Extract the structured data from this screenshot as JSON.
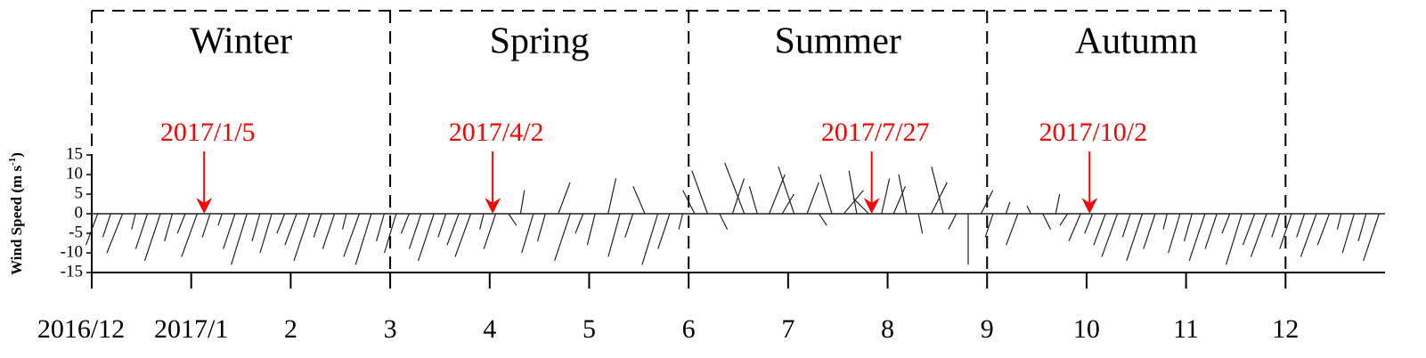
{
  "chart_data": {
    "type": "stick",
    "y_label": [
      "Wind Speed (m s",
      "-1",
      ")"
    ],
    "xlim": [
      0,
      13
    ],
    "ylim": [
      -15,
      15
    ],
    "yticks": [
      15,
      10,
      5,
      0,
      -5,
      -10,
      -15
    ],
    "xticks": [
      {
        "value": 0,
        "label": "2016/12"
      },
      {
        "value": 1,
        "label": "2017/1"
      },
      2,
      3,
      4,
      5,
      6,
      7,
      8,
      9,
      10,
      11,
      12
    ],
    "seasons": [
      {
        "label": "Winter",
        "start": 0,
        "end": 3
      },
      {
        "label": "Spring",
        "start": 3,
        "end": 6
      },
      {
        "label": "Summer",
        "start": 6,
        "end": 9
      },
      {
        "label": "Autumn",
        "start": 9,
        "end": 12
      }
    ],
    "annotations": [
      {
        "text": "2017/1/5",
        "x": 1.13
      },
      {
        "text": "2017/4/2",
        "x": 4.03
      },
      {
        "text": "2017/7/27",
        "x": 7.84
      },
      {
        "text": "2017/10/2",
        "x": 10.03
      }
    ],
    "annotation_color": "#ff0000",
    "color": "#222222",
    "x": [
      0.06,
      0.19,
      0.31,
      0.44,
      0.56,
      0.69,
      0.81,
      0.94,
      1.06,
      1.19,
      1.31,
      1.44,
      1.56,
      1.69,
      1.81,
      1.94,
      2.06,
      2.19,
      2.31,
      2.44,
      2.56,
      2.69,
      2.81,
      2.94,
      3.06,
      3.19,
      3.31,
      3.44,
      3.56,
      3.69,
      3.81,
      3.94,
      4.06,
      4.19,
      4.31,
      4.44,
      4.56,
      4.69,
      4.81,
      4.94,
      5.06,
      5.19,
      5.31,
      5.44,
      5.56,
      5.69,
      5.81,
      5.94,
      6.06,
      6.19,
      6.31,
      6.44,
      6.56,
      6.69,
      6.81,
      6.94,
      7.06,
      7.19,
      7.31,
      7.44,
      7.56,
      7.69,
      7.81,
      7.94,
      8.06,
      8.19,
      8.31,
      8.44,
      8.56,
      8.69,
      8.81,
      8.94,
      9.06,
      9.19,
      9.31,
      9.44,
      9.56,
      9.69,
      9.81,
      9.94,
      10.06,
      10.19,
      10.31,
      10.44,
      10.56,
      10.69,
      10.81,
      10.94,
      11.06,
      11.19,
      11.31,
      11.44,
      11.56,
      11.69,
      11.81,
      11.94,
      12.06,
      12.19,
      12.31,
      12.44,
      12.56,
      12.69,
      12.81,
      12.94
    ],
    "values": [
      -8,
      -6,
      -10,
      -4,
      -9,
      -12,
      -7,
      -5,
      -11,
      -6,
      -3,
      -9,
      -13,
      -7,
      -10,
      -5,
      -8,
      -12,
      -6,
      -9,
      -4,
      -11,
      -13,
      -7,
      -10,
      -5,
      -9,
      -12,
      -6,
      -8,
      -11,
      -4,
      -9,
      -3,
      6,
      -10,
      -7,
      8,
      -12,
      -5,
      -8,
      9,
      -11,
      -6,
      7,
      -13,
      -9,
      -4,
      6,
      11,
      -4,
      9,
      13,
      7,
      10,
      5,
      12,
      8,
      -3,
      10,
      6,
      11,
      4,
      9,
      7,
      10,
      -5,
      8,
      12,
      -4,
      -13,
      6,
      -6,
      3,
      -8,
      2,
      -4,
      5,
      -3,
      -7,
      -5,
      -8,
      -11,
      -6,
      -12,
      -9,
      -4,
      -10,
      -7,
      -12,
      -9,
      -5,
      -13,
      -8,
      -11,
      -6,
      -9,
      -6,
      -11,
      -8,
      -4,
      -10,
      -7,
      -12
    ],
    "u": [
      -3,
      -2,
      -4,
      -1,
      -3,
      -4,
      -2,
      -2,
      -4,
      -2,
      -1,
      -3,
      -4,
      -2,
      -3,
      -2,
      -3,
      -4,
      -2,
      -3,
      -1,
      -4,
      -4,
      -2,
      -3,
      -2,
      -3,
      -4,
      -2,
      -3,
      -4,
      -1,
      -3,
      2,
      1,
      -3,
      -2,
      3,
      -4,
      -2,
      -2,
      2,
      -3,
      -2,
      -3,
      -4,
      -3,
      -1,
      -3,
      -4,
      2,
      3,
      -5,
      -2,
      4,
      3,
      -4,
      3,
      2,
      -3,
      5,
      -2,
      -4,
      2,
      3,
      -2,
      1,
      4,
      -3,
      -2,
      0,
      3,
      -2,
      1,
      -3,
      -1,
      2,
      1,
      -2,
      -3,
      -2,
      -3,
      -4,
      -2,
      -4,
      -3,
      -1,
      -3,
      -2,
      -4,
      -3,
      -2,
      -4,
      -3,
      -4,
      -2,
      -3,
      -2,
      -4,
      -3,
      -1,
      -3,
      -2,
      -4
    ]
  }
}
